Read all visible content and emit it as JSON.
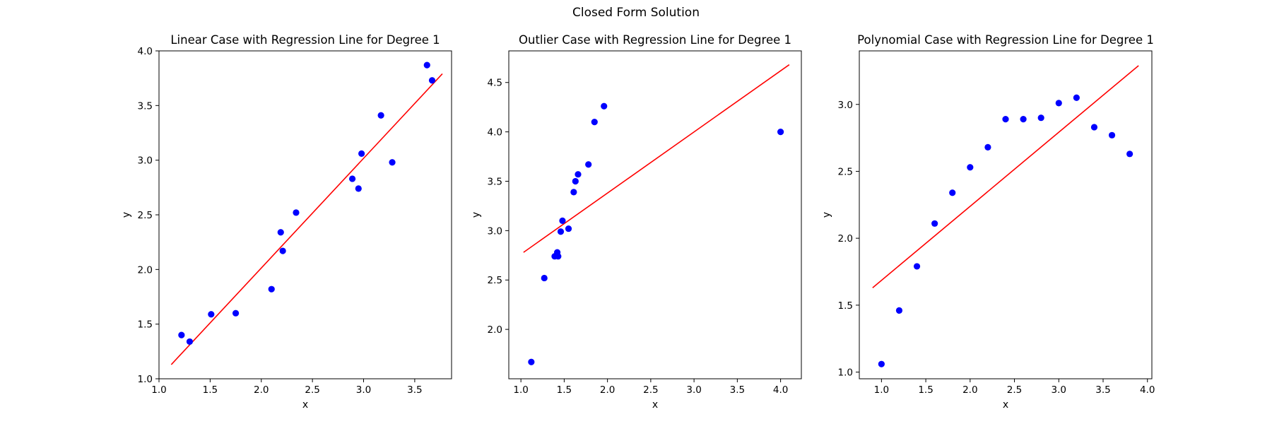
{
  "figure": {
    "title": "Closed Form Solution"
  },
  "chart_data": [
    {
      "type": "scatter",
      "title": "Linear Case with Regression Line for Degree 1",
      "xlabel": "x",
      "ylabel": "y",
      "xlim": [
        1.0,
        3.86
      ],
      "ylim": [
        1.0,
        4.0
      ],
      "xticks": [
        1.0,
        1.5,
        2.0,
        2.5,
        3.0,
        3.5
      ],
      "yticks": [
        1.0,
        1.5,
        2.0,
        2.5,
        3.0,
        3.5,
        4.0
      ],
      "tick_labels_x": [
        "1.0",
        "1.5",
        "2.0",
        "2.5",
        "3.0",
        "3.5"
      ],
      "tick_labels_y": [
        "1.0",
        "1.5",
        "2.0",
        "2.5",
        "3.0",
        "3.5",
        "4.0"
      ],
      "points": {
        "x": [
          1.22,
          1.3,
          1.51,
          1.75,
          2.1,
          2.19,
          2.21,
          2.34,
          2.89,
          2.95,
          2.98,
          3.17,
          3.28,
          3.62,
          3.67
        ],
        "y": [
          1.4,
          1.34,
          1.59,
          1.6,
          1.82,
          2.34,
          2.17,
          2.52,
          2.83,
          2.74,
          3.06,
          3.41,
          2.98,
          3.87,
          3.73
        ]
      },
      "regression_line": {
        "x": [
          1.12,
          3.77
        ],
        "y": [
          1.13,
          3.79
        ]
      },
      "point_color": "#0000ff",
      "line_color": "#ff0000",
      "grid": false
    },
    {
      "type": "scatter",
      "title": "Outlier Case with Regression Line for Degree 1",
      "xlabel": "x",
      "ylabel": "y",
      "xlim": [
        0.86,
        4.24
      ],
      "ylim": [
        1.5,
        4.82
      ],
      "xticks": [
        1.0,
        1.5,
        2.0,
        2.5,
        3.0,
        3.5,
        4.0
      ],
      "yticks": [
        2.0,
        2.5,
        3.0,
        3.5,
        4.0,
        4.5
      ],
      "tick_labels_x": [
        "1.0",
        "1.5",
        "2.0",
        "2.5",
        "3.0",
        "3.5",
        "4.0"
      ],
      "tick_labels_y": [
        "2.0",
        "2.5",
        "3.0",
        "3.5",
        "4.0",
        "4.5"
      ],
      "points": {
        "x": [
          1.12,
          1.27,
          1.39,
          1.42,
          1.43,
          1.46,
          1.48,
          1.55,
          1.61,
          1.63,
          1.66,
          1.78,
          1.85,
          1.96,
          4.0
        ],
        "y": [
          1.67,
          2.52,
          2.74,
          2.78,
          2.74,
          2.99,
          3.1,
          3.02,
          3.39,
          3.5,
          3.57,
          3.67,
          4.1,
          4.26,
          4.0
        ]
      },
      "regression_line": {
        "x": [
          1.03,
          4.1
        ],
        "y": [
          2.78,
          4.68
        ]
      },
      "point_color": "#0000ff",
      "line_color": "#ff0000",
      "grid": false
    },
    {
      "type": "scatter",
      "title": "Polynomial Case with Regression Line for Degree 1",
      "xlabel": "x",
      "ylabel": "y",
      "xlim": [
        0.75,
        4.05
      ],
      "ylim": [
        0.95,
        3.4
      ],
      "xticks": [
        1.0,
        1.5,
        2.0,
        2.5,
        3.0,
        3.5,
        4.0
      ],
      "yticks": [
        1.0,
        1.5,
        2.0,
        2.5,
        3.0
      ],
      "tick_labels_x": [
        "1.0",
        "1.5",
        "2.0",
        "2.5",
        "3.0",
        "3.5",
        "4.0"
      ],
      "tick_labels_y": [
        "1.0",
        "1.5",
        "2.0",
        "2.5",
        "3.0"
      ],
      "points": {
        "x": [
          1.0,
          1.2,
          1.4,
          1.6,
          1.8,
          2.0,
          2.2,
          2.4,
          2.6,
          2.8,
          3.0,
          3.2,
          3.4,
          3.6,
          3.8
        ],
        "y": [
          1.06,
          1.46,
          1.79,
          2.11,
          2.34,
          2.53,
          2.68,
          2.89,
          2.89,
          2.9,
          3.01,
          3.05,
          2.83,
          2.77,
          2.63
        ]
      },
      "regression_line": {
        "x": [
          0.9,
          3.9
        ],
        "y": [
          1.63,
          3.29
        ]
      },
      "point_color": "#0000ff",
      "line_color": "#ff0000",
      "grid": false
    }
  ]
}
